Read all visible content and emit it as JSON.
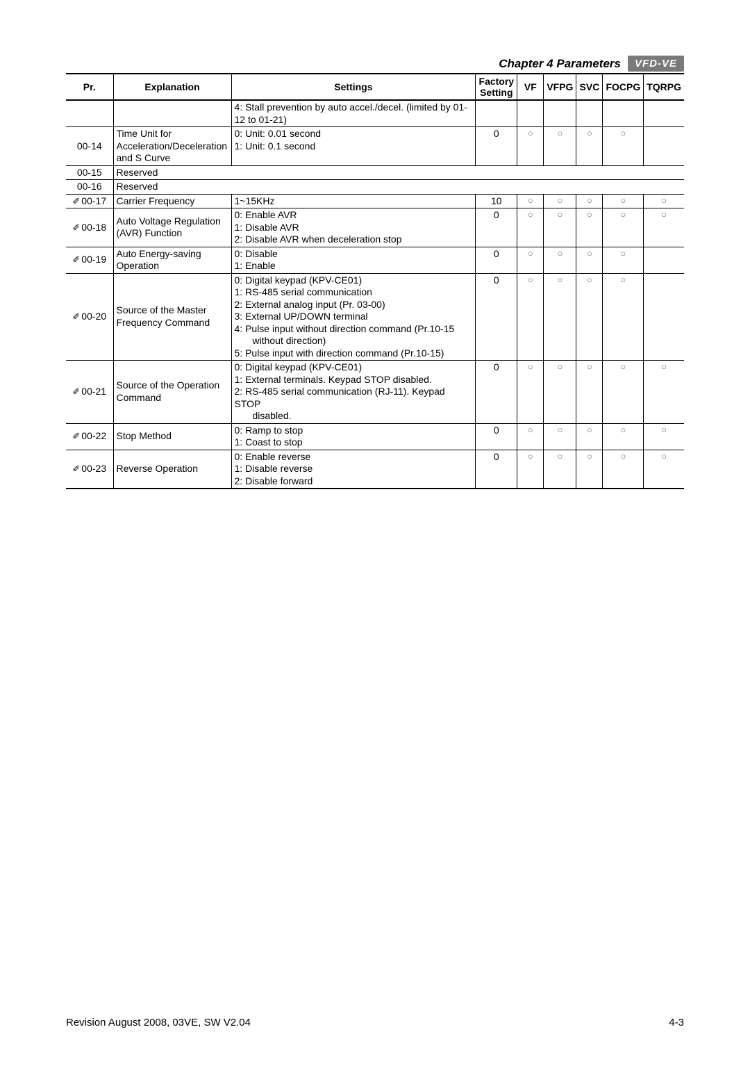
{
  "header": {
    "chapter": "Chapter 4 Parameters",
    "logo": "VFD-VE"
  },
  "columns": {
    "pr": "Pr.",
    "explanation": "Explanation",
    "settings": "Settings",
    "factory": "Factory Setting",
    "vf": "VF",
    "vfpg": "VFPG",
    "svc": "SVC",
    "focpg": "FOCPG",
    "tqrpg": "TQRPG"
  },
  "rows": {
    "stall": {
      "settings": "4: Stall prevention by auto accel./decel. (limited by 01-12 to 01-21)"
    },
    "r0014": {
      "pr": "00-14",
      "exp": "Time Unit for Acceleration/Deceleration and S Curve",
      "set1": "0: Unit: 0.01 second",
      "set2": "1: Unit: 0.1 second",
      "fac": "0",
      "vf": "○",
      "vfpg": "○",
      "svc": "○",
      "focpg": "○"
    },
    "r0015": {
      "pr": "00-15",
      "exp": "Reserved"
    },
    "r0016": {
      "pr": "00-16",
      "exp": "Reserved"
    },
    "r0017": {
      "pr": "00-17",
      "exp": "Carrier Frequency",
      "set": "1~15KHz",
      "fac": "10",
      "vf": "○",
      "vfpg": "○",
      "svc": "○",
      "focpg": "○",
      "tqrpg": "○"
    },
    "r0018": {
      "pr": "00-18",
      "exp": "Auto Voltage Regulation (AVR) Function",
      "set1": "0: Enable AVR",
      "set2": "1: Disable AVR",
      "set3": "2: Disable AVR when deceleration stop",
      "fac": "0",
      "vf": "○",
      "vfpg": "○",
      "svc": "○",
      "focpg": "○",
      "tqrpg": "○"
    },
    "r0019": {
      "pr": "00-19",
      "exp": "Auto Energy-saving Operation",
      "set1": "0: Disable",
      "set2": "1: Enable",
      "fac": "0",
      "vf": "○",
      "vfpg": "○",
      "svc": "○",
      "focpg": "○"
    },
    "r0020": {
      "pr": "00-20",
      "exp": "Source of the Master Frequency Command",
      "set1": "0: Digital keypad (KPV-CE01)",
      "set2": "1: RS-485 serial communication",
      "set3": "2: External analog input (Pr. 03-00)",
      "set4": "3: External UP/DOWN terminal",
      "set5": "4: Pulse input without direction command (Pr.10-15",
      "set5b": "without direction)",
      "set6": "5: Pulse input with direction command (Pr.10-15)",
      "fac": "0",
      "vf": "○",
      "vfpg": "○",
      "svc": "○",
      "focpg": "○"
    },
    "r0021": {
      "pr": "00-21",
      "exp": "Source of the Operation Command",
      "set1": "0: Digital keypad (KPV-CE01)",
      "set2": "1: External terminals. Keypad STOP disabled.",
      "set3": "2: RS-485 serial communication (RJ-11). Keypad STOP",
      "set3b": "disabled.",
      "fac": "0",
      "vf": "○",
      "vfpg": "○",
      "svc": "○",
      "focpg": "○",
      "tqrpg": "○"
    },
    "r0022": {
      "pr": "00-22",
      "exp": "Stop Method",
      "set1": "0: Ramp to stop",
      "set2": "1: Coast to stop",
      "fac": "0",
      "vf": "○",
      "vfpg": "○",
      "svc": "○",
      "focpg": "○",
      "tqrpg": "○"
    },
    "r0023": {
      "pr": "00-23",
      "exp": "Reverse Operation",
      "set1": "0: Enable reverse",
      "set2": "1: Disable reverse",
      "set3": "2: Disable forward",
      "fac": "0",
      "vf": "○",
      "vfpg": "○",
      "svc": "○",
      "focpg": "○",
      "tqrpg": "○"
    }
  },
  "footer": {
    "left": "Revision August 2008, 03VE, SW V2.04",
    "right": "4-3"
  }
}
